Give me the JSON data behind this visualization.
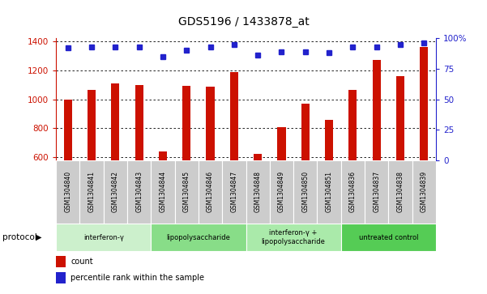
{
  "title": "GDS5196 / 1433878_at",
  "samples": [
    "GSM1304840",
    "GSM1304841",
    "GSM1304842",
    "GSM1304843",
    "GSM1304844",
    "GSM1304845",
    "GSM1304846",
    "GSM1304847",
    "GSM1304848",
    "GSM1304849",
    "GSM1304850",
    "GSM1304851",
    "GSM1304836",
    "GSM1304837",
    "GSM1304838",
    "GSM1304839"
  ],
  "counts": [
    998,
    1065,
    1110,
    1100,
    638,
    1090,
    1085,
    1185,
    625,
    808,
    968,
    858,
    1065,
    1270,
    1160,
    1360
  ],
  "percentile_ranks": [
    92,
    93,
    93,
    93,
    85,
    90,
    93,
    95,
    86,
    89,
    89,
    88,
    93,
    93,
    95,
    96
  ],
  "groups": [
    {
      "label": "interferon-γ",
      "start": 0,
      "end": 4,
      "color": "#ccf0cc"
    },
    {
      "label": "lipopolysaccharide",
      "start": 4,
      "end": 8,
      "color": "#88dd88"
    },
    {
      "label": "interferon-γ +\nlipopolysaccharide",
      "start": 8,
      "end": 12,
      "color": "#aaeaaa"
    },
    {
      "label": "untreated control",
      "start": 12,
      "end": 16,
      "color": "#55cc55"
    }
  ],
  "ylim_left": [
    580,
    1420
  ],
  "ylim_right": [
    0,
    100
  ],
  "yticks_left": [
    600,
    800,
    1000,
    1200,
    1400
  ],
  "yticks_right": [
    0,
    25,
    50,
    75,
    100
  ],
  "bar_color": "#cc1100",
  "dot_color": "#2222cc",
  "protocol_label": "protocol",
  "legend_count": "count",
  "legend_percentile": "percentile rank within the sample"
}
